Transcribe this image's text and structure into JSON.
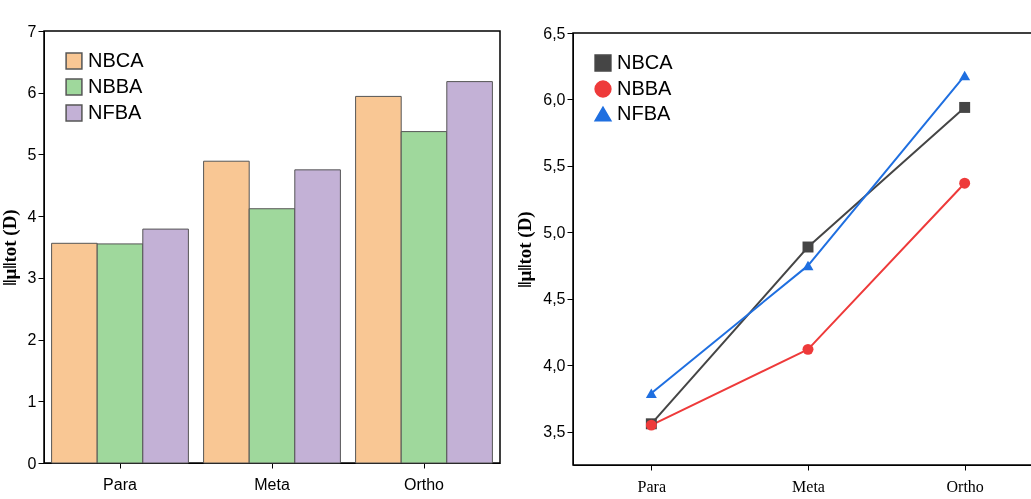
{
  "chart_data": [
    {
      "type": "bar",
      "ylabel": "‖μ‖tot (D)",
      "categories": [
        "Para",
        "Meta",
        "Ortho"
      ],
      "series": [
        {
          "name": "NBCA",
          "color": "#f9c794",
          "values": [
            3.56,
            4.89,
            5.94
          ]
        },
        {
          "name": "NBBA",
          "color": "#9fd89c",
          "values": [
            3.55,
            4.12,
            5.37
          ]
        },
        {
          "name": "NFBA",
          "color": "#c3b1d6",
          "values": [
            3.79,
            4.75,
            6.18
          ]
        }
      ],
      "ylim": [
        0,
        7
      ],
      "yticks": [
        0,
        1,
        2,
        3,
        4,
        5,
        6,
        7
      ],
      "legend": "top left"
    },
    {
      "type": "line",
      "ylabel": "‖μ‖tot (D)",
      "categories": [
        "Para",
        "Meta",
        "Ortho"
      ],
      "series": [
        {
          "name": "NBCA",
          "color": "#454545",
          "marker": "square",
          "values": [
            3.56,
            4.89,
            5.94
          ]
        },
        {
          "name": "NBBA",
          "color": "#ee3a3a",
          "marker": "circle",
          "values": [
            3.55,
            4.12,
            5.37
          ]
        },
        {
          "name": "NFBA",
          "color": "#1f6fe0",
          "marker": "triangle",
          "values": [
            3.79,
            4.75,
            6.18
          ]
        }
      ],
      "ylim": [
        3.25,
        6.5
      ],
      "yticks": [
        {
          "value": 3.5,
          "label": "3,5"
        },
        {
          "value": 4.0,
          "label": "4,0"
        },
        {
          "value": 4.5,
          "label": "4,5"
        },
        {
          "value": 5.0,
          "label": "5,0"
        },
        {
          "value": 5.5,
          "label": "5,5"
        },
        {
          "value": 6.0,
          "label": "6,0"
        },
        {
          "value": 6.5,
          "label": "6,5"
        }
      ],
      "legend": "top left"
    }
  ]
}
